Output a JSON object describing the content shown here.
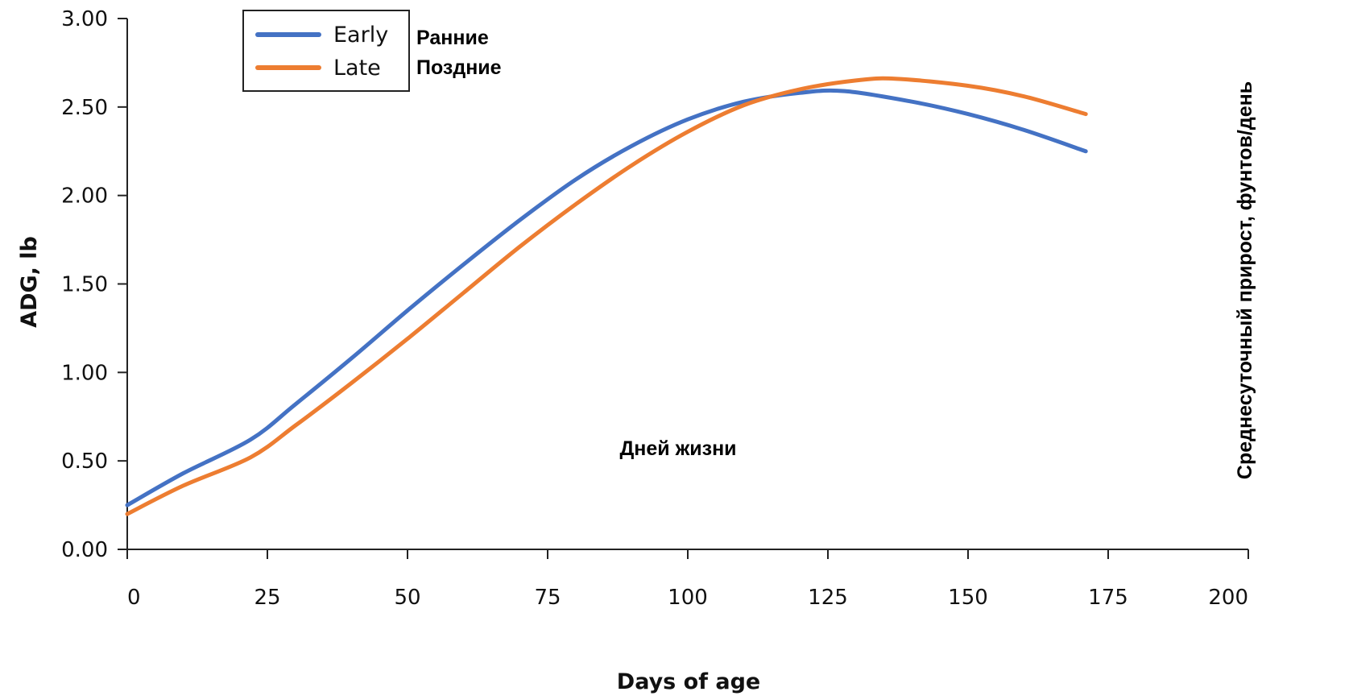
{
  "chart_data": {
    "type": "line",
    "xlabel": "Days of age",
    "ylabel": "ADG, lb",
    "xlim": [
      0,
      200
    ],
    "ylim": [
      0,
      3
    ],
    "x_ticks": [
      0,
      25,
      50,
      75,
      100,
      125,
      150,
      175,
      200
    ],
    "y_ticks": [
      "0.00",
      "0.50",
      "1.00",
      "1.50",
      "2.00",
      "2.50",
      "3.00"
    ],
    "grid": false,
    "legend_position": "top-left",
    "series": [
      {
        "name": "Early",
        "color": "#4472C4",
        "x": [
          0,
          10,
          22,
          30,
          40,
          50,
          60,
          70,
          80,
          90,
          100,
          110,
          120,
          128,
          140,
          150,
          160,
          171
        ],
        "y": [
          0.25,
          0.43,
          0.62,
          0.82,
          1.08,
          1.35,
          1.61,
          1.86,
          2.09,
          2.28,
          2.43,
          2.53,
          2.58,
          2.59,
          2.53,
          2.46,
          2.37,
          2.25
        ]
      },
      {
        "name": "Late",
        "color": "#ED7D31",
        "x": [
          0,
          10,
          22,
          30,
          40,
          50,
          60,
          70,
          80,
          90,
          100,
          110,
          120,
          130,
          137,
          150,
          160,
          171
        ],
        "y": [
          0.2,
          0.36,
          0.52,
          0.7,
          0.94,
          1.19,
          1.45,
          1.71,
          1.95,
          2.17,
          2.36,
          2.51,
          2.6,
          2.65,
          2.66,
          2.62,
          2.56,
          2.46
        ]
      }
    ]
  },
  "translations": {
    "early": "Ранние",
    "late": "Поздние",
    "xlabel": "Дней жизни",
    "ylabel": "Среднесуточный прирост, фунтов/день"
  }
}
